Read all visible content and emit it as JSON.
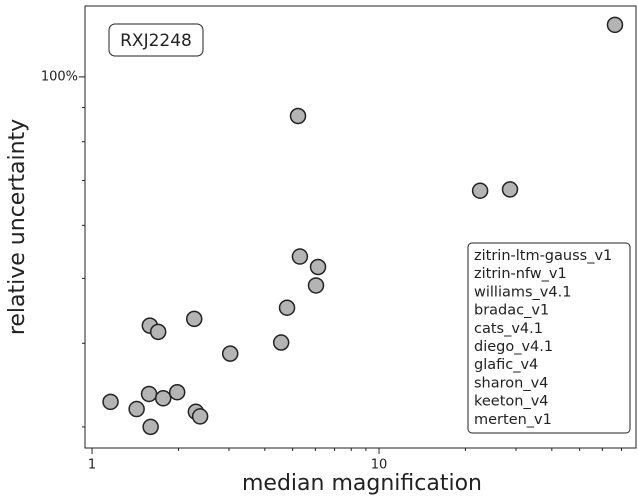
{
  "chart_data": {
    "type": "scatter",
    "xlabel": "median magnification",
    "ylabel": "relative uncertainty",
    "annotation": "RXJ2248",
    "x": [
      66.4,
      5.22,
      22.5,
      28.6,
      5.3,
      6.13,
      6.03,
      4.78,
      2.27,
      1.59,
      1.7,
      4.56,
      3.03,
      1.16,
      1.43,
      1.58,
      1.77,
      1.98,
      2.3,
      2.38,
      1.6
    ],
    "values": [
      119.6,
      87.4,
      67.6,
      67.9,
      53.9,
      52.0,
      48.8,
      45.2,
      43.5,
      42.5,
      41.6,
      40.1,
      38.6,
      32.7,
      31.9,
      33.6,
      33.1,
      33.8,
      31.6,
      31.1,
      30.0
    ],
    "color": "#b4b4b4",
    "xlim": [
      0.945,
      78.6
    ],
    "ylim": [
      27.9,
      127.6
    ],
    "xscale": "log",
    "yscale": "log",
    "xticks": [
      1,
      10
    ],
    "xminorticks": [
      2,
      3,
      4,
      5,
      6,
      7,
      8,
      9,
      20,
      30,
      40,
      50,
      60,
      70
    ],
    "yticks": [
      {
        "value": 100,
        "label": "100%"
      }
    ],
    "yminorticks": [
      30,
      40,
      50,
      60,
      70,
      80,
      90
    ],
    "legend": [
      "zitrin-ltm-gauss_v1",
      "zitrin-nfw_v1",
      "williams_v4.1",
      "bradac_v1",
      "cats_v4.1",
      "diego_v4.1",
      "glafic_v4",
      "sharon_v4",
      "keeton_v4",
      "merten_v1"
    ],
    "legend_loc": "lower right"
  }
}
